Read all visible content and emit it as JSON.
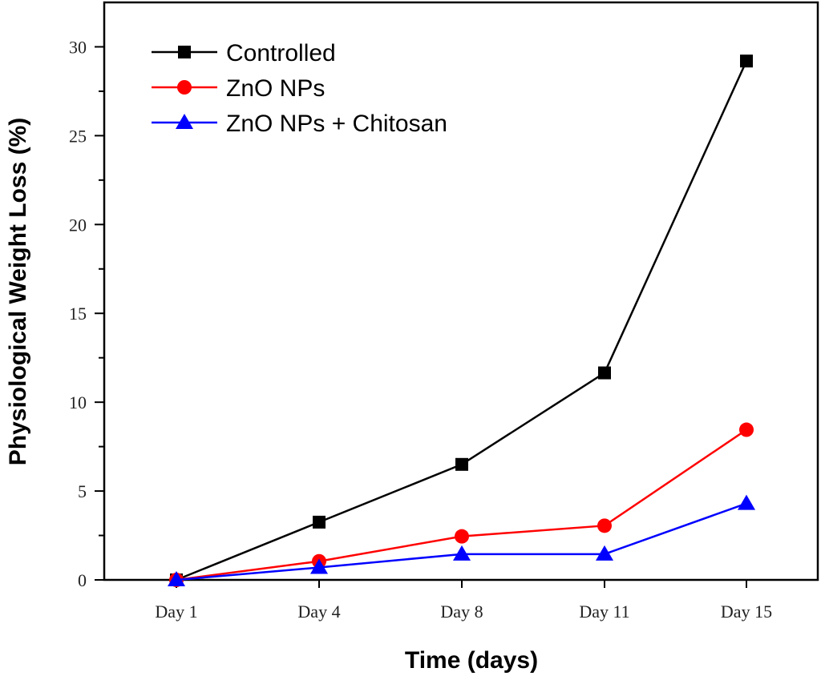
{
  "chart_data": {
    "type": "line",
    "title": "",
    "xlabel": "Time (days)",
    "ylabel": "Physiological Weight Loss (%)",
    "categories": [
      "Day 1",
      "Day 4",
      "Day 8",
      "Day 11",
      "Day 15"
    ],
    "ylim": [
      0,
      32.5
    ],
    "yticks": [
      0,
      5,
      10,
      15,
      20,
      25,
      30
    ],
    "yticks_minor_step": 2.5,
    "grid": false,
    "legend_position": "top-left",
    "series": [
      {
        "name": "Controlled",
        "color": "#000000",
        "marker": "square",
        "values": [
          0,
          3.25,
          6.5,
          11.65,
          29.2
        ]
      },
      {
        "name": "ZnO NPs",
        "color": "#ff0000",
        "marker": "circle",
        "values": [
          0,
          1.05,
          2.45,
          3.05,
          8.45
        ]
      },
      {
        "name": "ZnO NPs + Chitosan",
        "color": "#0000ff",
        "marker": "triangle",
        "values": [
          0,
          0.7,
          1.45,
          1.45,
          4.3
        ]
      }
    ]
  }
}
